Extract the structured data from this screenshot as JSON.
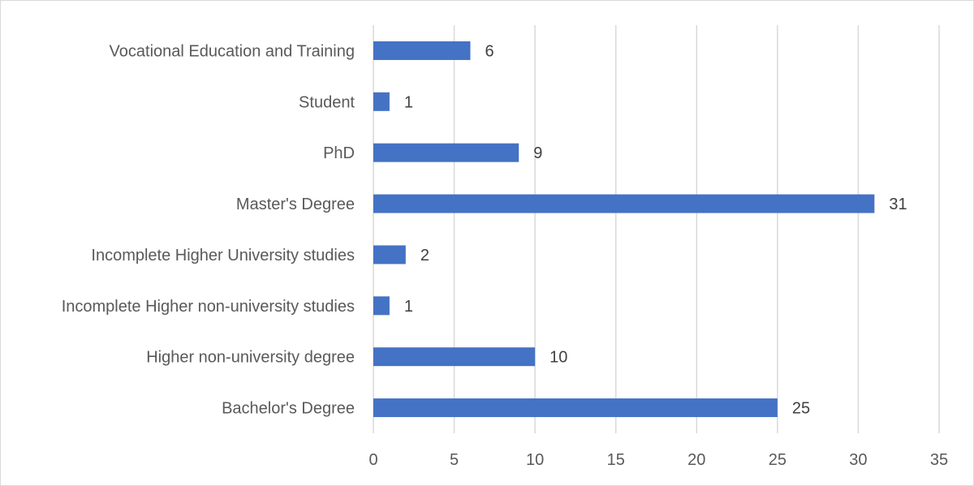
{
  "chart_data": {
    "type": "bar",
    "orientation": "horizontal",
    "categories": [
      "Vocational Education and Training",
      "Student",
      "PhD",
      "Master's Degree",
      "Incomplete Higher University studies",
      "Incomplete Higher non-university studies",
      "Higher non-university degree",
      "Bachelor's Degree"
    ],
    "values": [
      6,
      1,
      9,
      31,
      2,
      1,
      10,
      25
    ],
    "xlim": [
      0,
      35
    ],
    "xticks": [
      0,
      5,
      10,
      15,
      20,
      25,
      30,
      35
    ],
    "grid": "vertical",
    "data_labels": true,
    "title": "",
    "xlabel": "",
    "ylabel": "",
    "colors": {
      "bar": "#4472c4",
      "grid": "#d9d9d9",
      "text": "#595959"
    }
  }
}
